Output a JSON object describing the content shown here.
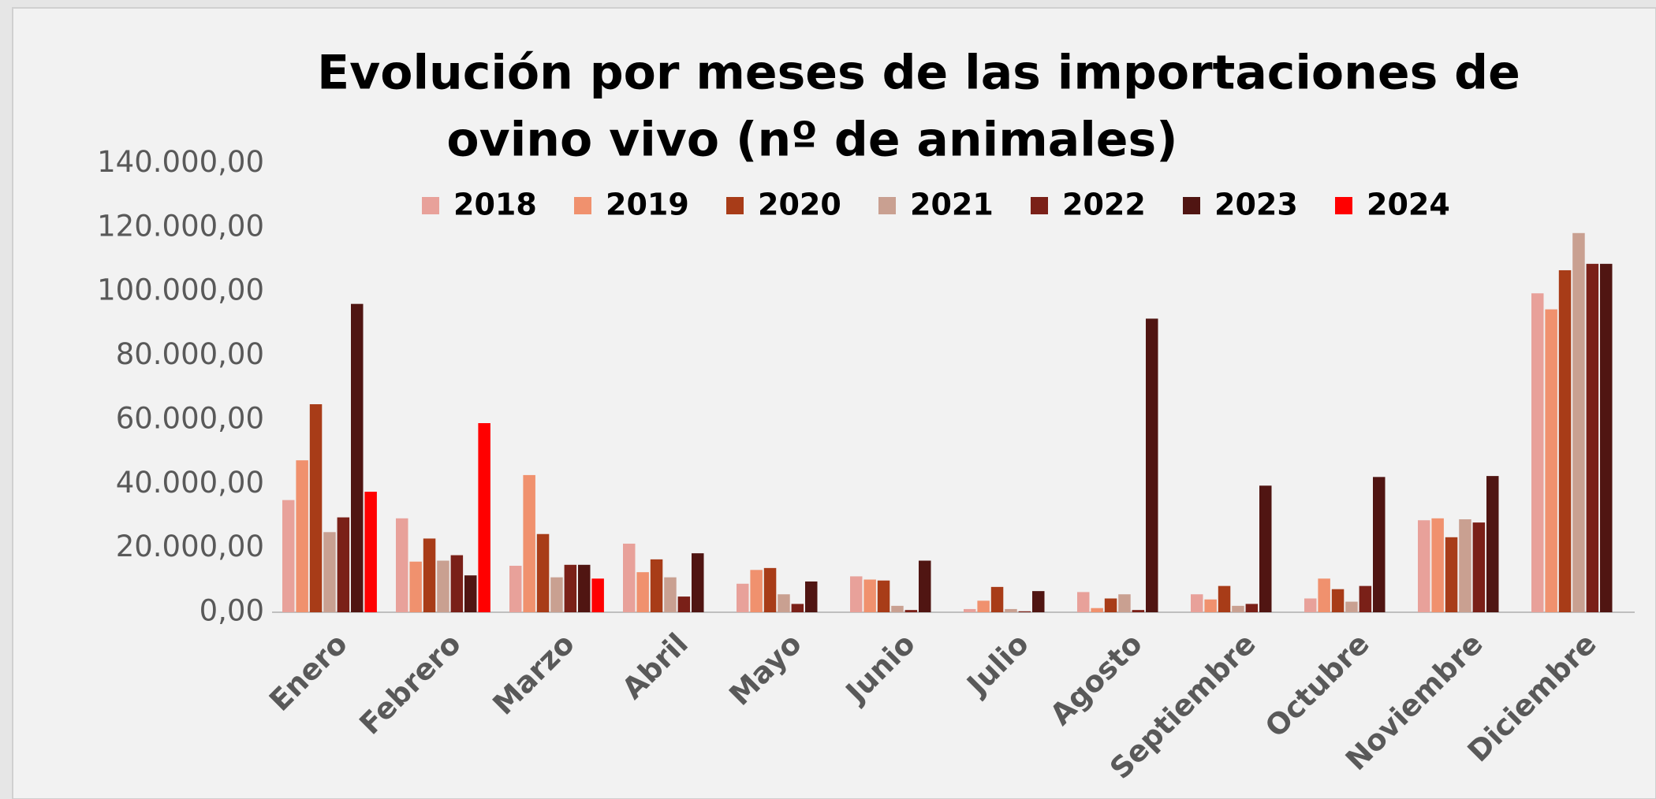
{
  "chart_data": {
    "type": "bar",
    "title": [
      "Evolución por meses de las importaciones de",
      "ovino vivo (nº de animales)"
    ],
    "categories": [
      "Enero",
      "Febrero",
      "Marzo",
      "Abril",
      "Mayo",
      "Junio",
      "Julio",
      "Agosto",
      "Septiembre",
      "Octubre",
      "Noviembre",
      "Diciembre"
    ],
    "series": [
      {
        "name": "2018",
        "color": "#e8a19a",
        "values": [
          35000,
          29300,
          14500,
          21400,
          8900,
          11200,
          1000,
          6300,
          5600,
          4300,
          28700,
          99500
        ]
      },
      {
        "name": "2019",
        "color": "#f0916e",
        "values": [
          47400,
          15800,
          42800,
          12500,
          13200,
          10200,
          3600,
          1300,
          4000,
          10500,
          29300,
          94500
        ]
      },
      {
        "name": "2020",
        "color": "#a83c18",
        "values": [
          64900,
          23000,
          24400,
          16500,
          13800,
          9900,
          7900,
          4300,
          8200,
          7200,
          23400,
          106700
        ]
      },
      {
        "name": "2021",
        "color": "#c9a091",
        "values": [
          25000,
          16100,
          10900,
          10900,
          5600,
          2000,
          1000,
          5600,
          2000,
          3300,
          29000,
          118300
        ]
      },
      {
        "name": "2022",
        "color": "#7a2018",
        "values": [
          29600,
          17800,
          14800,
          4900,
          2600,
          700,
          300,
          700,
          2600,
          8200,
          28000,
          108700
        ]
      },
      {
        "name": "2023",
        "color": "#501512",
        "values": [
          96200,
          11500,
          14800,
          18400,
          9600,
          16100,
          6600,
          91600,
          39500,
          42200,
          42500,
          108700
        ]
      },
      {
        "name": "2024",
        "color": "#ff0000",
        "values": [
          37600,
          59000,
          10500,
          null,
          null,
          null,
          null,
          null,
          null,
          null,
          null,
          null
        ]
      }
    ],
    "ylim": [
      0,
      140000
    ],
    "yticks": [
      {
        "value": 0,
        "label": "0,00"
      },
      {
        "value": 20000,
        "label": "20.000,00"
      },
      {
        "value": 40000,
        "label": "40.000,00"
      },
      {
        "value": 60000,
        "label": "60.000,00"
      },
      {
        "value": 80000,
        "label": "80.000,00"
      },
      {
        "value": 100000,
        "label": "100.000,00"
      },
      {
        "value": 120000,
        "label": "120.000,00"
      },
      {
        "value": 140000,
        "label": "140.000,00"
      }
    ],
    "legend": "top",
    "grid": false
  }
}
